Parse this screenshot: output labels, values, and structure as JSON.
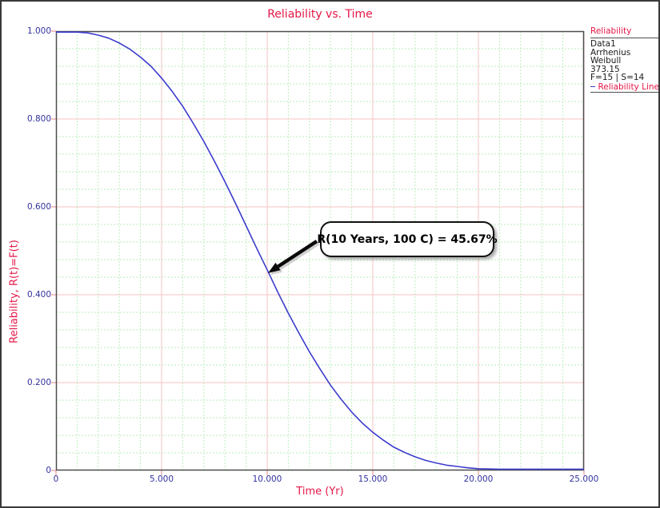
{
  "window": {
    "background": "#ffffff",
    "border_color": "#3a3a3a"
  },
  "title": "Reliability vs. Time",
  "legend": {
    "header": "Reliability",
    "items": [
      "Data1",
      "Arrhenius",
      "Weibull",
      "373.15",
      "F=15 | S=14"
    ],
    "line_label": "Reliability Line"
  },
  "annotation_text": "R(10 Years, 100 C) = 45.67%",
  "colors": {
    "accent_red": "#e41747",
    "tick_label": "#32329e",
    "curve_blue": "#3c3ccd",
    "minor_grid": "#bdeebd",
    "major_grid": "#f7c3c3",
    "frame": "#4d4d4d",
    "tick_mark": "#ee9a9a"
  },
  "chart_data": {
    "type": "line",
    "title": "Reliability vs. Time",
    "xlabel": "Time (Yr)",
    "ylabel": "Reliability, R(t)=F(t)",
    "xlim": [
      0,
      25
    ],
    "ylim": [
      0,
      1
    ],
    "x_major_step": 5,
    "x_minor_step": 1,
    "y_major_step": 0.2,
    "y_minor_step": 0.04,
    "x_tick_values": [
      0,
      5,
      10,
      15,
      20,
      25
    ],
    "x_tick_labels": [
      "0",
      "5.000",
      "10.000",
      "15.000",
      "20.000",
      "25.000"
    ],
    "y_tick_values": [
      1,
      0.8,
      0.6,
      0.4,
      0.2,
      0
    ],
    "y_tick_labels": [
      "1.000",
      "0.800",
      "0.600",
      "0.400",
      "0.200",
      "0"
    ],
    "grid": "on",
    "legend_position": "top-right",
    "series": [
      {
        "name": "Reliability Line",
        "color": "#3c3ccd",
        "points": [
          [
            0,
            1.0
          ],
          [
            0.5,
            1.0
          ],
          [
            1,
            0.999
          ],
          [
            1.5,
            0.996
          ],
          [
            2,
            0.991
          ],
          [
            2.5,
            0.984
          ],
          [
            3,
            0.973
          ],
          [
            3.5,
            0.959
          ],
          [
            4,
            0.941
          ],
          [
            4.5,
            0.92
          ],
          [
            5,
            0.893
          ],
          [
            5.5,
            0.863
          ],
          [
            6,
            0.829
          ],
          [
            6.5,
            0.79
          ],
          [
            7,
            0.749
          ],
          [
            7.5,
            0.704
          ],
          [
            8,
            0.657
          ],
          [
            8.5,
            0.608
          ],
          [
            9,
            0.557
          ],
          [
            9.5,
            0.506
          ],
          [
            10,
            0.4567
          ],
          [
            10.5,
            0.406
          ],
          [
            11,
            0.358
          ],
          [
            11.5,
            0.313
          ],
          [
            12,
            0.27
          ],
          [
            12.5,
            0.231
          ],
          [
            13,
            0.194
          ],
          [
            13.5,
            0.162
          ],
          [
            14,
            0.133
          ],
          [
            14.5,
            0.108
          ],
          [
            15,
            0.087
          ],
          [
            15.5,
            0.069
          ],
          [
            16,
            0.053
          ],
          [
            16.5,
            0.041
          ],
          [
            17,
            0.031
          ],
          [
            17.5,
            0.023
          ],
          [
            18,
            0.017
          ],
          [
            18.5,
            0.012
          ],
          [
            19,
            0.009
          ],
          [
            19.5,
            0.006
          ],
          [
            20,
            0.004
          ],
          [
            21,
            0.002
          ],
          [
            22,
            0.001
          ],
          [
            23,
            0.0005
          ],
          [
            24,
            0.0002
          ],
          [
            25,
            0.0001
          ]
        ]
      }
    ],
    "annotation": {
      "text": "R(10 Years, 100 C) = 45.67%",
      "x": 10,
      "y": 0.4567
    }
  }
}
